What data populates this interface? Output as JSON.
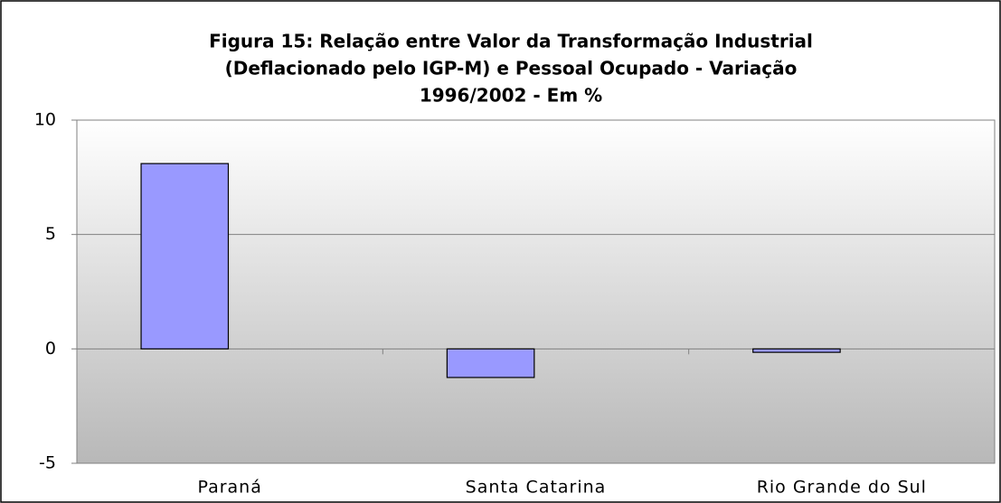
{
  "chart_data": {
    "type": "bar",
    "title": [
      "Figura 15: Relação entre Valor da Transformação Industrial",
      "(Deflacionado pelo IGP-M) e Pessoal Ocupado - Variação",
      "1996/2002 - Em %"
    ],
    "categories": [
      "Paraná",
      "Santa Catarina",
      "Rio Grande do Sul"
    ],
    "values": [
      8.1,
      -1.25,
      -0.15
    ],
    "color": "#9999ff",
    "ylim": [
      -5,
      10
    ],
    "yticks": [
      -5,
      0,
      5,
      10
    ],
    "grid": true
  }
}
